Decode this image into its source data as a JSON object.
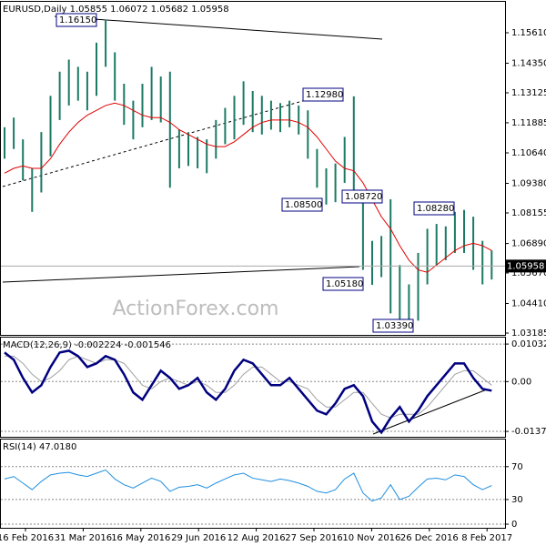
{
  "chart_data": [
    {
      "type": "bar",
      "title": "EURUSD,Daily 1.05855 1.06072 1.05682 1.05958",
      "color": "#1b7a64",
      "high": [
        1.117,
        1.121,
        1.112,
        1.1,
        1.115,
        1.13,
        1.14,
        1.145,
        1.142,
        1.14,
        1.152,
        1.1615,
        1.148,
        1.135,
        1.128,
        1.135,
        1.142,
        1.138,
        1.14,
        1.116,
        1.115,
        1.113,
        1.112,
        1.12,
        1.125,
        1.13,
        1.136,
        1.132,
        1.13,
        1.128,
        1.127,
        1.128,
        1.126,
        1.124,
        1.108,
        1.1,
        1.102,
        1.113,
        1.1298,
        1.09,
        1.07,
        1.072,
        1.0872,
        1.06,
        1.052,
        1.065,
        1.075,
        1.077,
        1.076,
        1.082,
        1.0828,
        1.08,
        1.07,
        1.066
      ],
      "low": [
        1.104,
        1.108,
        1.095,
        1.082,
        1.09,
        1.105,
        1.12,
        1.126,
        1.128,
        1.124,
        1.13,
        1.142,
        1.128,
        1.118,
        1.112,
        1.117,
        1.12,
        1.119,
        1.092,
        1.1,
        1.101,
        1.1,
        1.098,
        1.104,
        1.11,
        1.112,
        1.118,
        1.115,
        1.114,
        1.116,
        1.115,
        1.117,
        1.114,
        1.104,
        1.092,
        1.085,
        1.086,
        1.094,
        1.087,
        1.058,
        1.0518,
        1.055,
        1.04,
        1.037,
        1.0339,
        1.037,
        1.052,
        1.06,
        1.062,
        1.065,
        1.065,
        1.058,
        1.052,
        1.054
      ],
      "moving_average": {
        "color": "#e00000",
        "values": [
          1.098,
          1.1,
          1.101,
          1.1,
          1.1,
          1.104,
          1.11,
          1.115,
          1.119,
          1.122,
          1.124,
          1.126,
          1.127,
          1.126,
          1.124,
          1.122,
          1.121,
          1.121,
          1.119,
          1.116,
          1.114,
          1.112,
          1.11,
          1.109,
          1.109,
          1.111,
          1.114,
          1.117,
          1.119,
          1.12,
          1.12,
          1.12,
          1.119,
          1.117,
          1.113,
          1.108,
          1.103,
          1.1,
          1.099,
          1.094,
          1.087,
          1.08,
          1.075,
          1.068,
          1.062,
          1.058,
          1.057,
          1.06,
          1.063,
          1.066,
          1.068,
          1.069,
          1.068,
          1.066
        ]
      },
      "last_price": 1.05958,
      "annotations": [
        "1.16150",
        "1.12980",
        "1.08500",
        "1.08720",
        "1.08280",
        "1.05180",
        "1.03390"
      ],
      "watermark": "ActionForex.com",
      "x_labels": [
        "16 Feb 2016",
        "31 Mar 2016",
        "16 May 2016",
        "29 Jun 2016",
        "12 Aug 2016",
        "27 Sep 2016",
        "10 Nov 2016",
        "26 Dec 2016",
        "8 Feb 2017"
      ],
      "ylim": [
        1.0311,
        1.1689
      ],
      "yticks": [
        {
          "value": 1.1561,
          "label": "1.15610"
        },
        {
          "value": 1.1435,
          "label": "1.14350"
        },
        1.13125,
        1.11885,
        {
          "value": 1.1064,
          "label": "1.10640"
        },
        {
          "value": 1.0938,
          "label": "1.09380"
        },
        1.08155,
        {
          "value": 1.0689,
          "label": "1.06890"
        },
        {
          "value": 1.0567,
          "label": "1.05670"
        },
        {
          "value": 1.0441,
          "label": "1.04410"
        },
        1.03185
      ]
    },
    {
      "type": "macd",
      "title": "MACD(12,26,9) -0.002224 -0.001546",
      "macd": {
        "color": "#000080",
        "values": [
          0.008,
          0.006,
          0.001,
          -0.003,
          -0.001,
          0.004,
          0.008,
          0.0085,
          0.007,
          0.004,
          0.005,
          0.007,
          0.006,
          0.002,
          -0.003,
          -0.005,
          -0.001,
          0.003,
          0.001,
          -0.002,
          -0.001,
          0.001,
          -0.003,
          -0.005,
          -0.002,
          0.003,
          0.006,
          0.005,
          0.002,
          -0.001,
          -0.001,
          0.001,
          -0.002,
          -0.005,
          -0.008,
          -0.009,
          -0.006,
          -0.002,
          -0.001,
          -0.004,
          -0.011,
          -0.014,
          -0.01,
          -0.007,
          -0.011,
          -0.008,
          -0.004,
          -0.001,
          0.002,
          0.005,
          0.005,
          0.001,
          -0.002,
          -0.0025
        ]
      },
      "signal": {
        "color": "#a0a0a0",
        "values": [
          0.007,
          0.007,
          0.005,
          0.002,
          0,
          0.001,
          0.003,
          0.006,
          0.007,
          0.006,
          0.005,
          0.006,
          0.006,
          0.005,
          0.002,
          -0.001,
          -0.002,
          0,
          0.001,
          0,
          -0.001,
          0,
          -0.001,
          -0.003,
          -0.003,
          -0.001,
          0.002,
          0.004,
          0.004,
          0.002,
          0,
          0,
          -0.001,
          -0.002,
          -0.005,
          -0.007,
          -0.007,
          -0.005,
          -0.003,
          -0.003,
          -0.006,
          -0.009,
          -0.01,
          -0.009,
          -0.009,
          -0.009,
          -0.007,
          -0.004,
          -0.001,
          0.002,
          0.003,
          0.003,
          0.001,
          -0.001
        ]
      },
      "ylim": [
        -0.0152,
        0.0121
      ],
      "yticks": [
        0.010325,
        {
          "value": 0,
          "label": "0.00"
        },
        -0.013709
      ]
    },
    {
      "type": "rsi",
      "title": "RSI(14) 47.0180",
      "color": "#1e8fe0",
      "values": [
        55,
        58,
        50,
        42,
        52,
        60,
        62,
        63,
        60,
        58,
        62,
        66,
        55,
        48,
        44,
        50,
        56,
        52,
        40,
        45,
        46,
        48,
        44,
        50,
        55,
        60,
        62,
        56,
        54,
        52,
        55,
        53,
        50,
        46,
        40,
        38,
        42,
        55,
        62,
        38,
        28,
        32,
        48,
        30,
        34,
        45,
        55,
        56,
        54,
        60,
        58,
        48,
        42,
        47
      ],
      "ylim": [
        -4.4,
        103
      ],
      "yticks": [
        70,
        30,
        0
      ]
    }
  ]
}
